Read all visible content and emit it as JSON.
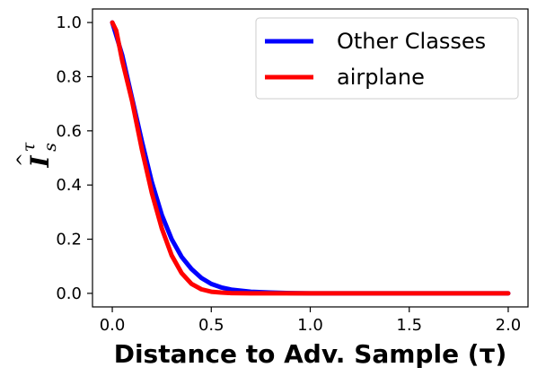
{
  "chart_data": {
    "type": "line",
    "xlabel": "Distance to Adv. Sample (τ)",
    "ylabel": {
      "base": "I",
      "hat": "^",
      "subscript": "s",
      "superscript": "τ"
    },
    "xlim": [
      -0.1,
      2.1
    ],
    "ylim": [
      -0.05,
      1.05
    ],
    "xticks": [
      "0.0",
      "0.5",
      "1.0",
      "1.5",
      "2.0"
    ],
    "yticks": [
      "0.0",
      "0.2",
      "0.4",
      "0.6",
      "0.8",
      "1.0"
    ],
    "grid": false,
    "legend_position": "top-right",
    "series": [
      {
        "name": "Other Classes",
        "color": "#0000ff",
        "x": [
          0.0,
          0.05,
          0.1,
          0.15,
          0.2,
          0.25,
          0.3,
          0.35,
          0.4,
          0.45,
          0.5,
          0.55,
          0.6,
          0.7,
          0.8,
          0.9,
          1.0,
          1.2,
          1.5,
          1.8,
          2.0
        ],
        "y": [
          1.0,
          0.88,
          0.72,
          0.56,
          0.41,
          0.29,
          0.2,
          0.135,
          0.09,
          0.057,
          0.035,
          0.022,
          0.014,
          0.006,
          0.003,
          0.001,
          0.0,
          0.0,
          0.0,
          0.0,
          0.0
        ]
      },
      {
        "name": "airplane",
        "color": "#ff0000",
        "x": [
          0.0,
          0.02,
          0.05,
          0.1,
          0.15,
          0.2,
          0.25,
          0.3,
          0.35,
          0.4,
          0.45,
          0.5,
          0.55,
          0.6,
          0.7,
          0.8,
          1.0,
          1.5,
          2.0
        ],
        "y": [
          1.0,
          0.97,
          0.86,
          0.71,
          0.53,
          0.37,
          0.24,
          0.14,
          0.075,
          0.035,
          0.015,
          0.006,
          0.003,
          0.001,
          0.0,
          0.0,
          0.0,
          0.0,
          0.0
        ]
      }
    ]
  }
}
